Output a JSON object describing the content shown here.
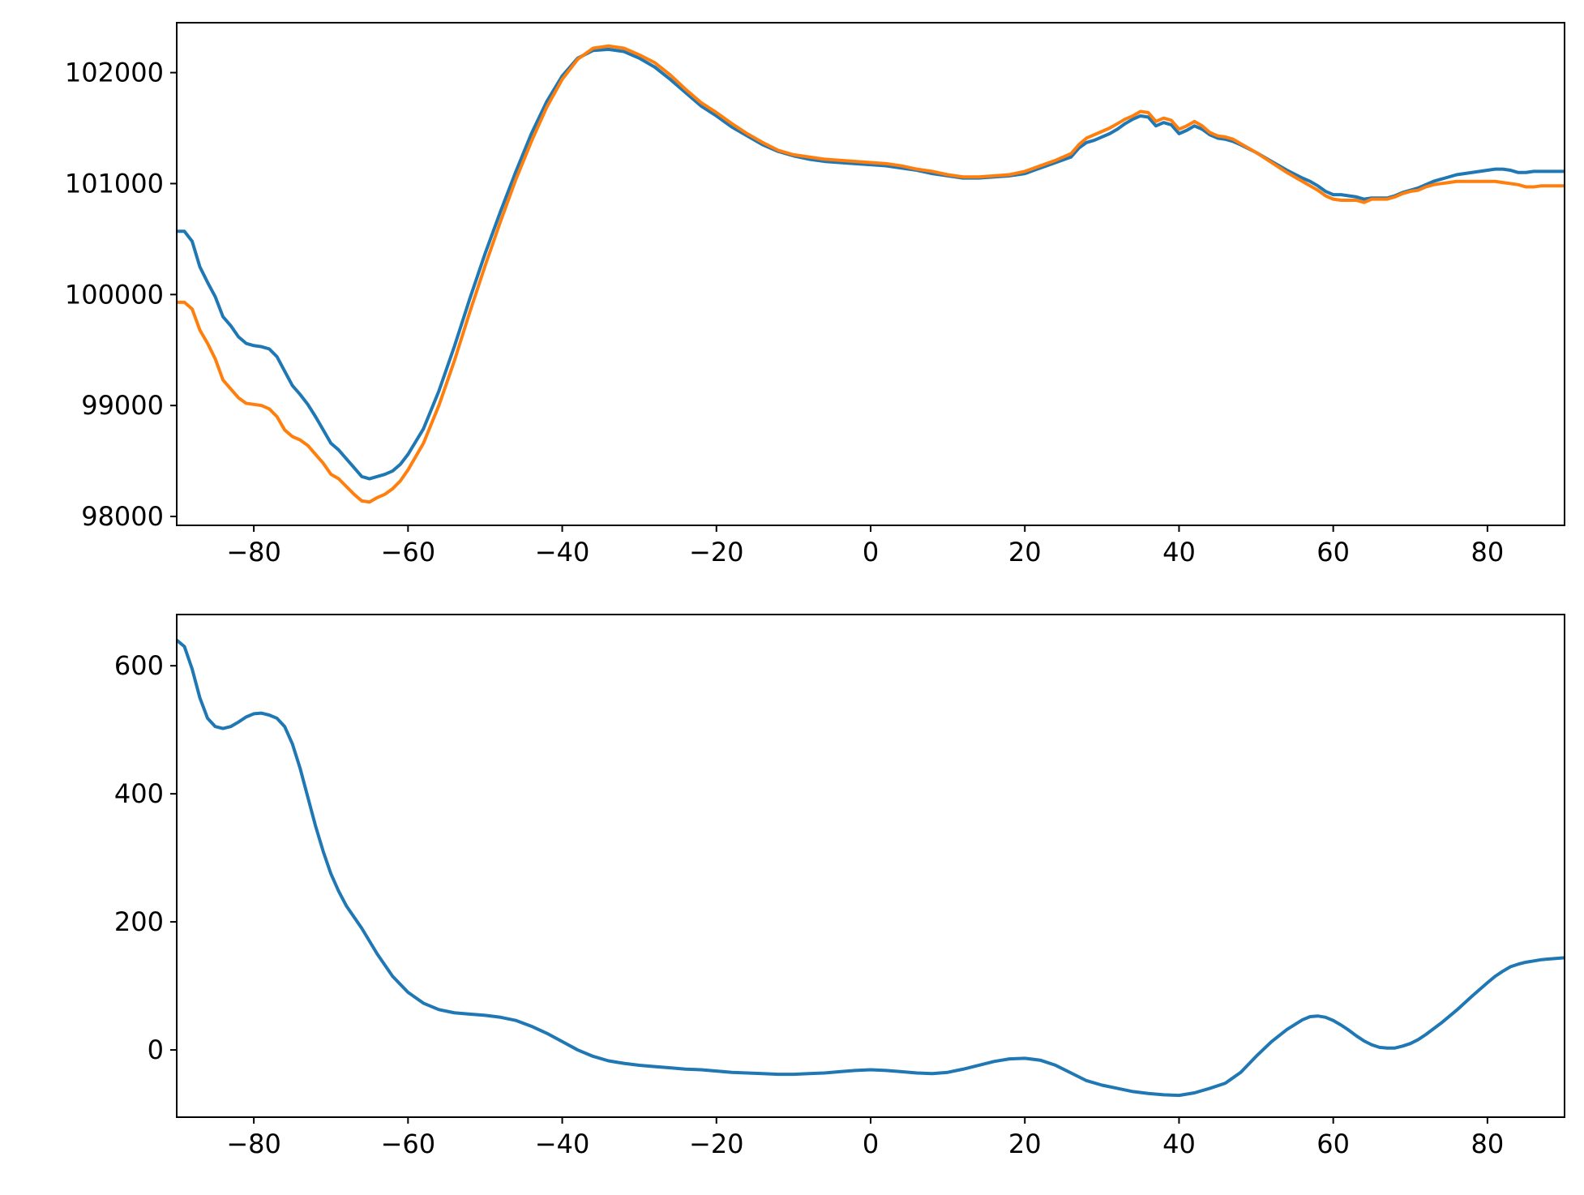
{
  "chart_data": [
    {
      "type": "line",
      "xlim": [
        -90,
        90
      ],
      "ylim": [
        97920,
        102450
      ],
      "xticks": [
        -80,
        -60,
        -40,
        -20,
        0,
        20,
        40,
        60,
        80
      ],
      "xtick_labels": [
        "−80",
        "−60",
        "−40",
        "−20",
        "0",
        "20",
        "40",
        "60",
        "80"
      ],
      "yticks": [
        98000,
        99000,
        100000,
        101000,
        102000
      ],
      "ytick_labels": [
        "98000",
        "99000",
        "100000",
        "101000",
        "102000"
      ],
      "grid": false,
      "series": [
        {
          "color": "#1f77b4",
          "x": [
            -90,
            -89,
            -88,
            -87,
            -86,
            -85,
            -84,
            -83,
            -82,
            -81,
            -80,
            -79,
            -78,
            -77,
            -76,
            -75,
            -74,
            -73,
            -72,
            -71,
            -70,
            -69,
            -68,
            -67,
            -66,
            -65,
            -64,
            -63,
            -62,
            -61,
            -60,
            -58,
            -56,
            -54,
            -52,
            -50,
            -48,
            -46,
            -44,
            -42,
            -40,
            -38,
            -36,
            -34,
            -32,
            -30,
            -28,
            -26,
            -24,
            -22,
            -20,
            -18,
            -16,
            -14,
            -12,
            -10,
            -8,
            -6,
            -4,
            -2,
            0,
            2,
            4,
            6,
            8,
            10,
            12,
            14,
            16,
            18,
            20,
            22,
            24,
            26,
            27,
            28,
            29,
            30,
            31,
            32,
            33,
            34,
            35,
            36,
            37,
            38,
            39,
            40,
            41,
            42,
            43,
            44,
            45,
            46,
            47,
            48,
            50,
            52,
            54,
            56,
            57,
            58,
            59,
            60,
            61,
            62,
            63,
            64,
            65,
            66,
            67,
            68,
            69,
            70,
            71,
            72,
            73,
            74,
            75,
            76,
            77,
            78,
            79,
            80,
            81,
            82,
            83,
            84,
            85,
            86,
            87,
            88,
            89,
            90
          ],
          "y": [
            100570,
            100570,
            100480,
            100250,
            100110,
            99980,
            99800,
            99720,
            99620,
            99560,
            99540,
            99530,
            99510,
            99440,
            99310,
            99180,
            99100,
            99010,
            98900,
            98780,
            98660,
            98600,
            98520,
            98440,
            98360,
            98340,
            98360,
            98380,
            98410,
            98470,
            98560,
            98790,
            99130,
            99530,
            99960,
            100370,
            100750,
            101110,
            101450,
            101740,
            101970,
            102130,
            102200,
            102210,
            102190,
            102130,
            102050,
            101940,
            101820,
            101700,
            101610,
            101510,
            101430,
            101350,
            101290,
            101250,
            101220,
            101200,
            101190,
            101180,
            101170,
            101160,
            101140,
            101120,
            101090,
            101070,
            101050,
            101050,
            101060,
            101070,
            101090,
            101140,
            101190,
            101240,
            101320,
            101370,
            101390,
            101420,
            101450,
            101490,
            101540,
            101580,
            101610,
            101600,
            101520,
            101550,
            101530,
            101450,
            101480,
            101520,
            101490,
            101440,
            101410,
            101400,
            101380,
            101350,
            101280,
            101200,
            101120,
            101050,
            101020,
            100980,
            100930,
            100900,
            100900,
            100890,
            100880,
            100860,
            100870,
            100870,
            100870,
            100890,
            100920,
            100940,
            100960,
            100990,
            101020,
            101040,
            101060,
            101080,
            101090,
            101100,
            101110,
            101120,
            101130,
            101130,
            101120,
            101100,
            101100,
            101110,
            101110,
            101110,
            101110,
            101110
          ]
        },
        {
          "color": "#ff7f0e",
          "x": [
            -90,
            -89,
            -88,
            -87,
            -86,
            -85,
            -84,
            -83,
            -82,
            -81,
            -80,
            -79,
            -78,
            -77,
            -76,
            -75,
            -74,
            -73,
            -72,
            -71,
            -70,
            -69,
            -68,
            -67,
            -66,
            -65,
            -64,
            -63,
            -62,
            -61,
            -60,
            -58,
            -56,
            -54,
            -52,
            -50,
            -48,
            -46,
            -44,
            -42,
            -40,
            -38,
            -36,
            -34,
            -32,
            -30,
            -28,
            -26,
            -24,
            -22,
            -20,
            -18,
            -16,
            -14,
            -12,
            -10,
            -8,
            -6,
            -4,
            -2,
            0,
            2,
            4,
            6,
            8,
            10,
            12,
            14,
            16,
            18,
            20,
            22,
            24,
            26,
            27,
            28,
            29,
            30,
            31,
            32,
            33,
            34,
            35,
            36,
            37,
            38,
            39,
            40,
            41,
            42,
            43,
            44,
            45,
            46,
            47,
            48,
            50,
            52,
            54,
            56,
            57,
            58,
            59,
            60,
            61,
            62,
            63,
            64,
            65,
            66,
            67,
            68,
            69,
            70,
            71,
            72,
            73,
            74,
            75,
            76,
            77,
            78,
            79,
            80,
            81,
            82,
            83,
            84,
            85,
            86,
            87,
            88,
            89,
            90
          ],
          "y": [
            99930,
            99930,
            99870,
            99680,
            99560,
            99420,
            99230,
            99150,
            99070,
            99020,
            99010,
            99000,
            98970,
            98900,
            98780,
            98720,
            98690,
            98640,
            98560,
            98480,
            98380,
            98340,
            98270,
            98200,
            98140,
            98130,
            98170,
            98200,
            98250,
            98320,
            98420,
            98660,
            99000,
            99400,
            99840,
            100260,
            100660,
            101040,
            101380,
            101690,
            101940,
            102120,
            102220,
            102240,
            102220,
            102160,
            102090,
            101980,
            101850,
            101730,
            101640,
            101540,
            101450,
            101370,
            101300,
            101260,
            101240,
            101220,
            101210,
            101200,
            101190,
            101180,
            101160,
            101130,
            101110,
            101080,
            101060,
            101060,
            101070,
            101080,
            101110,
            101160,
            101210,
            101270,
            101350,
            101410,
            101440,
            101470,
            101500,
            101540,
            101580,
            101610,
            101650,
            101640,
            101560,
            101590,
            101570,
            101490,
            101520,
            101560,
            101520,
            101460,
            101430,
            101420,
            101400,
            101360,
            101280,
            101190,
            101100,
            101020,
            100980,
            100940,
            100890,
            100860,
            100850,
            100850,
            100850,
            100830,
            100860,
            100860,
            100860,
            100880,
            100910,
            100930,
            100940,
            100970,
            100990,
            101000,
            101010,
            101020,
            101020,
            101020,
            101020,
            101020,
            101020,
            101010,
            101000,
            100990,
            100970,
            100970,
            100980,
            100980,
            100980,
            100980
          ]
        }
      ]
    },
    {
      "type": "line",
      "xlim": [
        -90,
        90
      ],
      "ylim": [
        -105,
        680
      ],
      "xticks": [
        -80,
        -60,
        -40,
        -20,
        0,
        20,
        40,
        60,
        80
      ],
      "xtick_labels": [
        "−80",
        "−60",
        "−40",
        "−20",
        "0",
        "20",
        "40",
        "60",
        "80"
      ],
      "yticks": [
        0,
        200,
        400,
        600
      ],
      "ytick_labels": [
        "0",
        "200",
        "400",
        "600"
      ],
      "grid": false,
      "series": [
        {
          "color": "#1f77b4",
          "x": [
            -90,
            -89,
            -88,
            -87,
            -86,
            -85,
            -84,
            -83,
            -82,
            -81,
            -80,
            -79,
            -78,
            -77,
            -76,
            -75,
            -74,
            -73,
            -72,
            -71,
            -70,
            -69,
            -68,
            -66,
            -64,
            -62,
            -60,
            -58,
            -56,
            -54,
            -52,
            -50,
            -48,
            -46,
            -44,
            -42,
            -40,
            -38,
            -36,
            -34,
            -32,
            -30,
            -28,
            -26,
            -24,
            -22,
            -20,
            -18,
            -16,
            -14,
            -12,
            -10,
            -8,
            -6,
            -4,
            -2,
            0,
            2,
            4,
            6,
            8,
            10,
            12,
            14,
            16,
            18,
            20,
            22,
            24,
            26,
            28,
            30,
            32,
            34,
            36,
            38,
            40,
            42,
            44,
            46,
            48,
            50,
            52,
            54,
            56,
            57,
            58,
            59,
            60,
            61,
            62,
            63,
            64,
            65,
            66,
            67,
            68,
            69,
            70,
            71,
            72,
            74,
            76,
            78,
            80,
            81,
            82,
            83,
            84,
            85,
            86,
            87,
            88,
            89,
            90
          ],
          "y": [
            640,
            630,
            595,
            550,
            518,
            505,
            502,
            505,
            512,
            520,
            525,
            526,
            523,
            518,
            505,
            478,
            440,
            395,
            350,
            310,
            275,
            248,
            225,
            190,
            150,
            115,
            90,
            73,
            63,
            58,
            56,
            54,
            51,
            46,
            37,
            26,
            13,
            0,
            -10,
            -17,
            -21,
            -24,
            -26,
            -28,
            -30,
            -31,
            -33,
            -35,
            -36,
            -37,
            -38,
            -38,
            -37,
            -36,
            -34,
            -32,
            -31,
            -32,
            -34,
            -36,
            -37,
            -35,
            -30,
            -24,
            -18,
            -14,
            -13,
            -16,
            -24,
            -36,
            -48,
            -55,
            -60,
            -65,
            -68,
            -70,
            -71,
            -67,
            -60,
            -52,
            -35,
            -10,
            13,
            32,
            47,
            52,
            53,
            51,
            46,
            39,
            31,
            22,
            14,
            8,
            4,
            3,
            3,
            6,
            10,
            16,
            24,
            42,
            62,
            84,
            105,
            115,
            123,
            130,
            134,
            137,
            139,
            141,
            142,
            143,
            144
          ]
        }
      ]
    }
  ]
}
